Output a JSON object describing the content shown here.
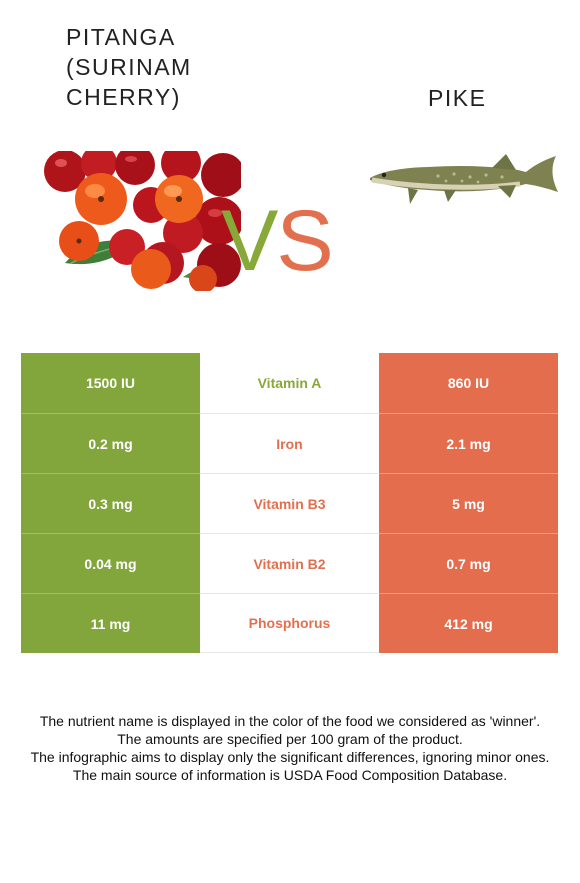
{
  "left_food": {
    "name": "PITANGA (SURINAM CHERRY)"
  },
  "right_food": {
    "name": "PIKE"
  },
  "vs": {
    "v": "V",
    "s": "S"
  },
  "colors": {
    "left": "#82a63c",
    "right": "#e36d4c",
    "winner_left": "#88a83a",
    "winner_right": "#e2704e"
  },
  "rows": [
    {
      "left": "1500 IU",
      "nutrient": "Vitamin A",
      "right": "860 IU",
      "winner": "left"
    },
    {
      "left": "0.2 mg",
      "nutrient": "Iron",
      "right": "2.1 mg",
      "winner": "right"
    },
    {
      "left": "0.3 mg",
      "nutrient": "Vitamin B3",
      "right": "5 mg",
      "winner": "right"
    },
    {
      "left": "0.04 mg",
      "nutrient": "Vitamin B2",
      "right": "0.7 mg",
      "winner": "right"
    },
    {
      "left": "11 mg",
      "nutrient": "Phosphorus",
      "right": "412 mg",
      "winner": "right"
    }
  ],
  "footnote": [
    "The nutrient name is displayed in the color of the food we considered as 'winner'.",
    "The amounts are specified per 100 gram of the product.",
    "The infographic aims to display only the significant differences, ignoring minor ones.",
    "The main source of information is USDA Food Composition Database."
  ]
}
